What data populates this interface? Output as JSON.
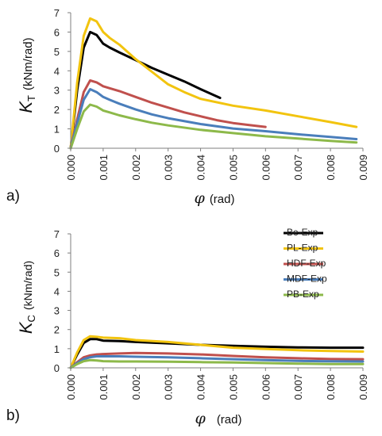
{
  "colors": {
    "Be-Exp": "#000000",
    "PL-Exp": "#f2c40f",
    "HDF-Exp": "#c0504d",
    "MDF-Exp": "#4a7ebb",
    "PB-Exp": "#8db94a",
    "axis": "#7f7f7f"
  },
  "chart_data": [
    {
      "type": "line",
      "panel_label": "a)",
      "ylabel_main": "K",
      "ylabel_sub": "T",
      "ylabel_units": "(kNm/rad)",
      "xlabel_symbol": "φ",
      "xlabel_units": "(rad)",
      "xlim": [
        0,
        0.009
      ],
      "ylim": [
        0,
        7
      ],
      "xticks": [
        "0.000",
        "0.001",
        "0.002",
        "0.003",
        "0.004",
        "0.005",
        "0.006",
        "0.007",
        "0.008",
        "0.009"
      ],
      "yticks": [
        "0",
        "1",
        "2",
        "3",
        "4",
        "5",
        "6",
        "7"
      ],
      "grid": false,
      "series": [
        {
          "name": "Be-Exp",
          "x": [
            0,
            0.0002,
            0.0004,
            0.0006,
            0.0008,
            0.001,
            0.0012,
            0.0015,
            0.002,
            0.0025,
            0.003,
            0.0035,
            0.004,
            0.0046
          ],
          "y": [
            0,
            3.0,
            5.2,
            6.0,
            5.85,
            5.4,
            5.2,
            4.95,
            4.55,
            4.15,
            3.8,
            3.45,
            3.05,
            2.6
          ]
        },
        {
          "name": "PL-Exp",
          "x": [
            0,
            0.0002,
            0.0004,
            0.0006,
            0.0008,
            0.001,
            0.0012,
            0.0015,
            0.002,
            0.0025,
            0.003,
            0.0035,
            0.004,
            0.005,
            0.006,
            0.007,
            0.008,
            0.0088
          ],
          "y": [
            0,
            3.4,
            5.8,
            6.7,
            6.55,
            6.0,
            5.7,
            5.35,
            4.6,
            3.95,
            3.3,
            2.9,
            2.55,
            2.2,
            1.95,
            1.65,
            1.35,
            1.1
          ]
        },
        {
          "name": "HDF-Exp",
          "x": [
            0,
            0.0002,
            0.0004,
            0.0006,
            0.0008,
            0.001,
            0.0012,
            0.0015,
            0.002,
            0.0025,
            0.003,
            0.0035,
            0.004,
            0.0045,
            0.005,
            0.0055,
            0.006
          ],
          "y": [
            0,
            1.5,
            2.9,
            3.5,
            3.4,
            3.2,
            3.1,
            2.95,
            2.65,
            2.35,
            2.1,
            1.85,
            1.65,
            1.45,
            1.3,
            1.2,
            1.1
          ]
        },
        {
          "name": "MDF-Exp",
          "x": [
            0,
            0.0002,
            0.0004,
            0.0006,
            0.0008,
            0.001,
            0.0012,
            0.0015,
            0.002,
            0.0025,
            0.003,
            0.004,
            0.005,
            0.006,
            0.007,
            0.008,
            0.0088
          ],
          "y": [
            0,
            1.3,
            2.5,
            3.05,
            2.9,
            2.65,
            2.5,
            2.3,
            2.0,
            1.75,
            1.55,
            1.25,
            1.02,
            0.88,
            0.72,
            0.58,
            0.47
          ]
        },
        {
          "name": "PB-Exp",
          "x": [
            0,
            0.0002,
            0.0004,
            0.0006,
            0.0008,
            0.001,
            0.0012,
            0.0015,
            0.002,
            0.0025,
            0.003,
            0.004,
            0.005,
            0.006,
            0.007,
            0.008,
            0.0088
          ],
          "y": [
            0,
            1.0,
            1.9,
            2.25,
            2.15,
            1.95,
            1.85,
            1.7,
            1.5,
            1.32,
            1.18,
            0.95,
            0.78,
            0.62,
            0.5,
            0.38,
            0.3
          ]
        }
      ]
    },
    {
      "type": "line",
      "panel_label": "b)",
      "ylabel_main": "K",
      "ylabel_sub": "C",
      "ylabel_units": "(kNm/rad)",
      "xlabel_symbol": "φ",
      "xlabel_units": "(rad)",
      "xlim": [
        0,
        0.009
      ],
      "ylim": [
        0,
        7
      ],
      "xticks": [
        "0.000",
        "0.001",
        "0.002",
        "0.003",
        "0.004",
        "0.005",
        "0.006",
        "0.007",
        "0.008",
        "0.009"
      ],
      "yticks": [
        "0",
        "1",
        "2",
        "3",
        "4",
        "5",
        "6",
        "7"
      ],
      "grid": false,
      "legend": "top-right",
      "series": [
        {
          "name": "Be-Exp",
          "x": [
            0,
            0.0002,
            0.0004,
            0.0006,
            0.0008,
            0.001,
            0.0015,
            0.002,
            0.003,
            0.004,
            0.005,
            0.006,
            0.007,
            0.008,
            0.009
          ],
          "y": [
            0,
            0.7,
            1.3,
            1.5,
            1.5,
            1.42,
            1.4,
            1.35,
            1.28,
            1.2,
            1.15,
            1.1,
            1.07,
            1.05,
            1.05
          ]
        },
        {
          "name": "PL-Exp",
          "x": [
            0,
            0.0002,
            0.0004,
            0.0006,
            0.0008,
            0.001,
            0.0015,
            0.002,
            0.003,
            0.004,
            0.005,
            0.006,
            0.007,
            0.008,
            0.009
          ],
          "y": [
            0,
            0.8,
            1.45,
            1.65,
            1.62,
            1.58,
            1.55,
            1.45,
            1.35,
            1.2,
            1.05,
            0.98,
            0.92,
            0.88,
            0.85
          ]
        },
        {
          "name": "HDF-Exp",
          "x": [
            0,
            0.0002,
            0.0004,
            0.0006,
            0.0008,
            0.001,
            0.0015,
            0.002,
            0.003,
            0.004,
            0.005,
            0.006,
            0.007,
            0.008,
            0.009
          ],
          "y": [
            0,
            0.3,
            0.55,
            0.65,
            0.7,
            0.72,
            0.75,
            0.78,
            0.75,
            0.7,
            0.62,
            0.55,
            0.5,
            0.46,
            0.45
          ]
        },
        {
          "name": "MDF-Exp",
          "x": [
            0,
            0.0002,
            0.0004,
            0.0006,
            0.0008,
            0.001,
            0.0015,
            0.002,
            0.003,
            0.004,
            0.005,
            0.006,
            0.007,
            0.008,
            0.009
          ],
          "y": [
            0,
            0.25,
            0.45,
            0.55,
            0.6,
            0.6,
            0.6,
            0.58,
            0.55,
            0.5,
            0.45,
            0.4,
            0.36,
            0.34,
            0.33
          ]
        },
        {
          "name": "PB-Exp",
          "x": [
            0,
            0.0002,
            0.0004,
            0.0006,
            0.0008,
            0.001,
            0.0015,
            0.002,
            0.003,
            0.004,
            0.005,
            0.006,
            0.007,
            0.008,
            0.009
          ],
          "y": [
            0,
            0.2,
            0.35,
            0.4,
            0.38,
            0.35,
            0.33,
            0.33,
            0.32,
            0.3,
            0.28,
            0.25,
            0.22,
            0.2,
            0.2
          ]
        }
      ]
    }
  ]
}
